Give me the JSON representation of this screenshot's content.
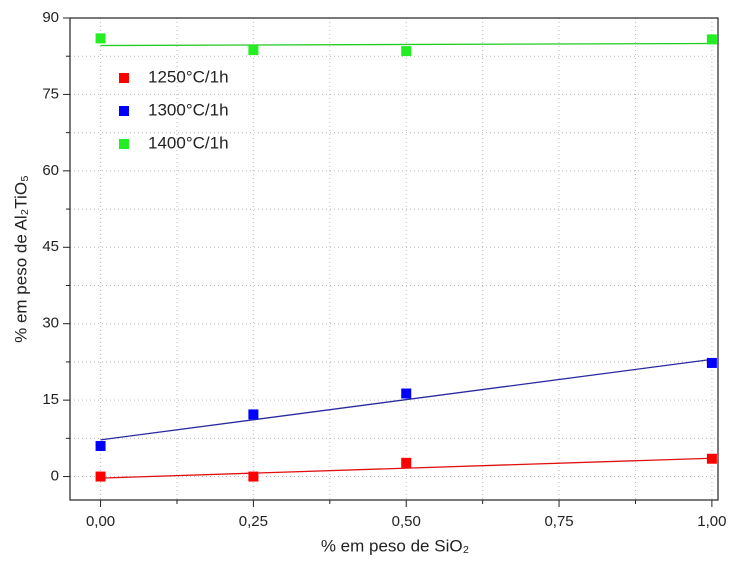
{
  "chart_data": {
    "type": "scatter",
    "xlabel": "% em peso de SiO₂",
    "ylabel": "% em peso de Al₂TiO₅",
    "xlim": [
      -0.05,
      1.01
    ],
    "ylim": [
      -4.6,
      90
    ],
    "xticks": [
      {
        "value": 0,
        "label": "0,00"
      },
      {
        "value": 0.25,
        "label": "0,25"
      },
      {
        "value": 0.5,
        "label": "0,50"
      },
      {
        "value": 0.75,
        "label": "0,75"
      },
      {
        "value": 1,
        "label": "1,00"
      }
    ],
    "yticks": [
      0,
      15,
      30,
      45,
      60,
      75,
      90
    ],
    "xminorticks": [
      0.125,
      0.375,
      0.625,
      0.875
    ],
    "yminorticks": [
      7.5,
      22.5,
      37.5,
      52.5,
      67.5,
      82.5
    ],
    "grid": true,
    "legend": "upper-left",
    "series": [
      {
        "name": "1250°C/1h",
        "color": "#ff0000",
        "fit_color": "#e01010",
        "x": [
          0,
          0.25,
          0.5,
          1
        ],
        "values": [
          0,
          0,
          2.7,
          3.5
        ],
        "fit": {
          "x": [
            0,
            1
          ],
          "y": [
            -0.3,
            3.6
          ]
        }
      },
      {
        "name": "1300°C/1h",
        "color": "#0000ff",
        "fit_color": "#2a2aa0",
        "x": [
          0,
          0.25,
          0.5,
          1
        ],
        "values": [
          6,
          12.2,
          16.3,
          22.3
        ],
        "fit": {
          "x": [
            0,
            1
          ],
          "y": [
            7.2,
            23
          ]
        }
      },
      {
        "name": "1400°C/1h",
        "color": "#22ee22",
        "fit_color": "#22cc22",
        "x": [
          0,
          0.25,
          0.5,
          1
        ],
        "values": [
          86,
          83.7,
          83.5,
          85.8
        ],
        "fit": {
          "x": [
            0,
            1
          ],
          "y": [
            84.6,
            85
          ]
        }
      }
    ]
  }
}
